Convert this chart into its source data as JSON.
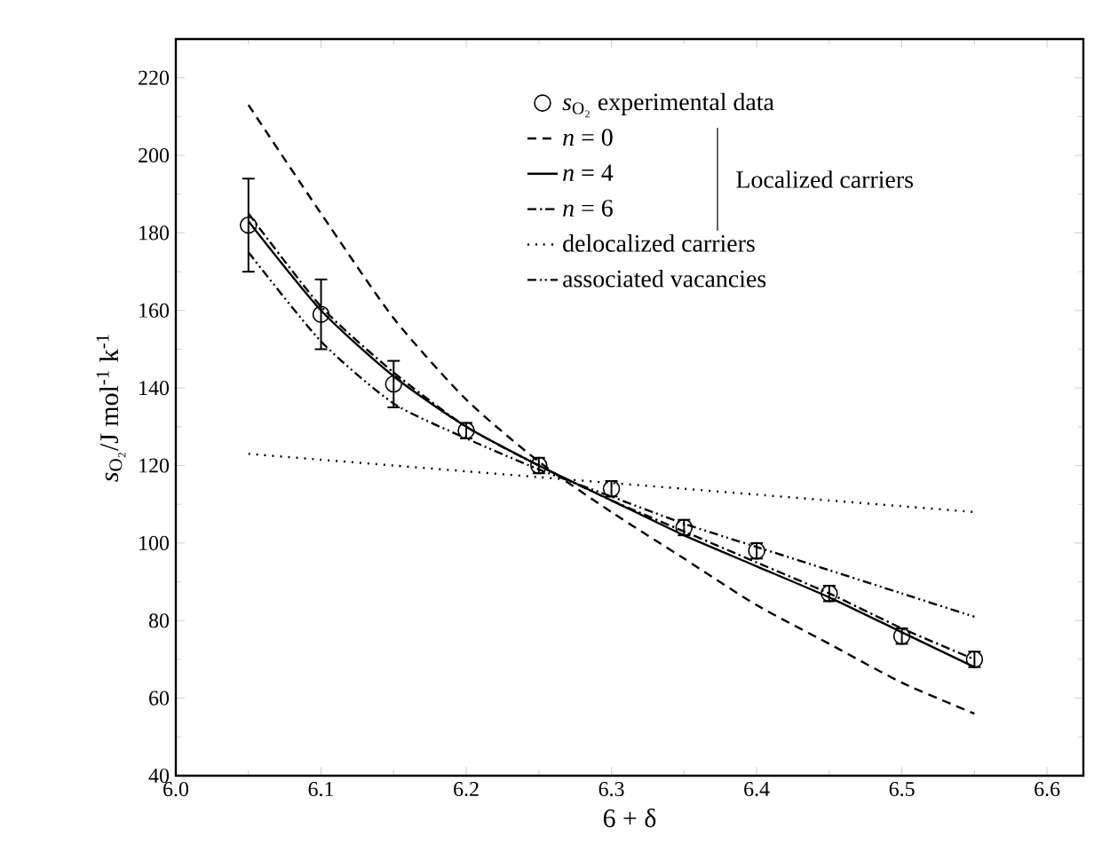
{
  "chart_data": {
    "type": "line",
    "xlabel": "6 + δ",
    "ylabel": "*s*$_{O₂}$/J mol$^{-1}$ k$^{-1}$",
    "x": [
      6.05,
      6.1,
      6.15,
      6.2,
      6.25,
      6.3,
      6.35,
      6.4,
      6.45,
      6.5,
      6.55
    ],
    "series": [
      {
        "name": "*s*$_{O₂}$ experimental data",
        "type": "scatter",
        "marker": "circle",
        "color": "#000000",
        "values": [
          182,
          159,
          141,
          129,
          120,
          114,
          104,
          98,
          87,
          76,
          70
        ],
        "errors": [
          12,
          9,
          6,
          2,
          2,
          2,
          2,
          2,
          2,
          2,
          2
        ]
      },
      {
        "name": "*n* = 0",
        "color": "#000000",
        "line_style": "dashed",
        "values": [
          213,
          185,
          158,
          137,
          121,
          108,
          96,
          84,
          74,
          64,
          56
        ]
      },
      {
        "name": "*n* = 4",
        "color": "#000000",
        "line_style": "solid",
        "values": [
          183,
          160,
          143,
          130,
          120,
          111,
          102,
          94,
          86,
          77,
          68
        ]
      },
      {
        "name": "*n* = 6",
        "color": "#000000",
        "line_style": "dashdot",
        "values": [
          185,
          161,
          144,
          130,
          120,
          111,
          103,
          95,
          87,
          78,
          70
        ]
      },
      {
        "name": "delocalized carriers",
        "color": "#000000",
        "line_style": "dotted",
        "values": [
          123,
          121.5,
          120,
          118.5,
          117,
          115.5,
          114,
          112.5,
          111,
          109.5,
          108
        ]
      },
      {
        "name": "associated vacancies",
        "color": "#000000",
        "line_style": "dashdotdot",
        "values": [
          175,
          152,
          136,
          127,
          119,
          112,
          105,
          99,
          93,
          87,
          81
        ]
      }
    ],
    "annotations": [
      "Localized carriers"
    ],
    "xlim": [
      6.0,
      6.625
    ],
    "ylim": [
      40,
      230
    ],
    "xticks": [
      {
        "value": 6.0,
        "label": "6.0"
      },
      {
        "value": 6.1,
        "label": "6.1"
      },
      {
        "value": 6.2,
        "label": "6.2"
      },
      {
        "value": 6.3,
        "label": "6.3"
      },
      {
        "value": 6.4,
        "label": "6.4"
      },
      {
        "value": 6.5,
        "label": "6.5"
      },
      {
        "value": 6.6,
        "label": "6.6"
      }
    ],
    "yticks": [
      40,
      60,
      80,
      100,
      120,
      140,
      160,
      180,
      200,
      220
    ],
    "legend": "top right",
    "grid": false
  }
}
